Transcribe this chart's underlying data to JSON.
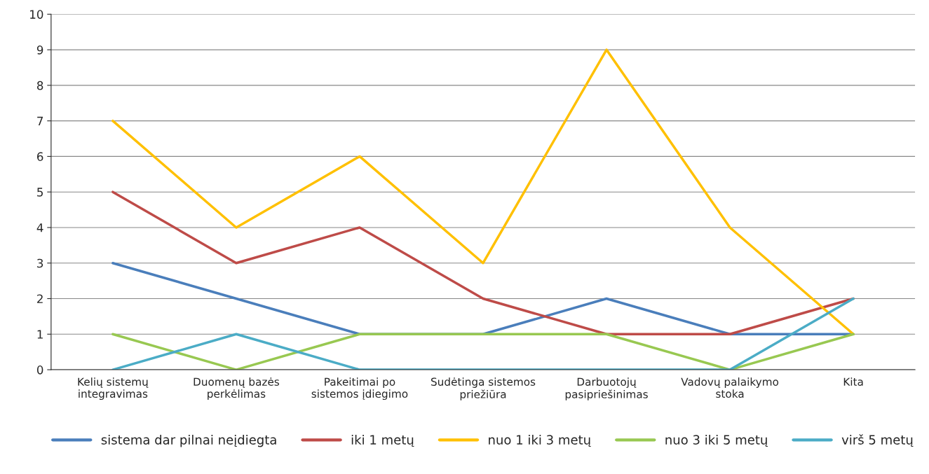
{
  "chart_data": {
    "type": "line",
    "categories": [
      "Kelių sistemų\nintegravimas",
      "Duomenų bazės\nperkėlimas",
      "Pakeitimai po\nsistemos įdiegimo",
      "Sudėtinga sistemos\npriežiūra",
      "Darbuotojų\npasipriešinimas",
      "Vadovų palaikymo\nstoka",
      "Kita"
    ],
    "series": [
      {
        "name": "sistema dar pilnai neįdiegta",
        "color": "#4a7ebb",
        "values": [
          3,
          2,
          1,
          1,
          2,
          1,
          1
        ]
      },
      {
        "name": "iki 1 metų",
        "color": "#be4b48",
        "values": [
          5,
          3,
          4,
          2,
          1,
          1,
          2
        ]
      },
      {
        "name": "nuo 1 iki 3 metų",
        "color": "#ffc000",
        "values": [
          7,
          4,
          6,
          3,
          9,
          4,
          1
        ]
      },
      {
        "name": "nuo 3 iki 5 metų",
        "color": "#98c851",
        "values": [
          1,
          0,
          1,
          1,
          1,
          0,
          1
        ]
      },
      {
        "name": "virš 5 metų",
        "color": "#4bacc6",
        "values": [
          0,
          1,
          0,
          0,
          0,
          0,
          2
        ]
      }
    ],
    "ylim": [
      0,
      10
    ],
    "yticks": [
      0,
      1,
      2,
      3,
      4,
      5,
      6,
      7,
      8,
      9,
      10
    ],
    "grid": "y",
    "legend": "bottom",
    "marker": "none",
    "line_style": "solid"
  }
}
